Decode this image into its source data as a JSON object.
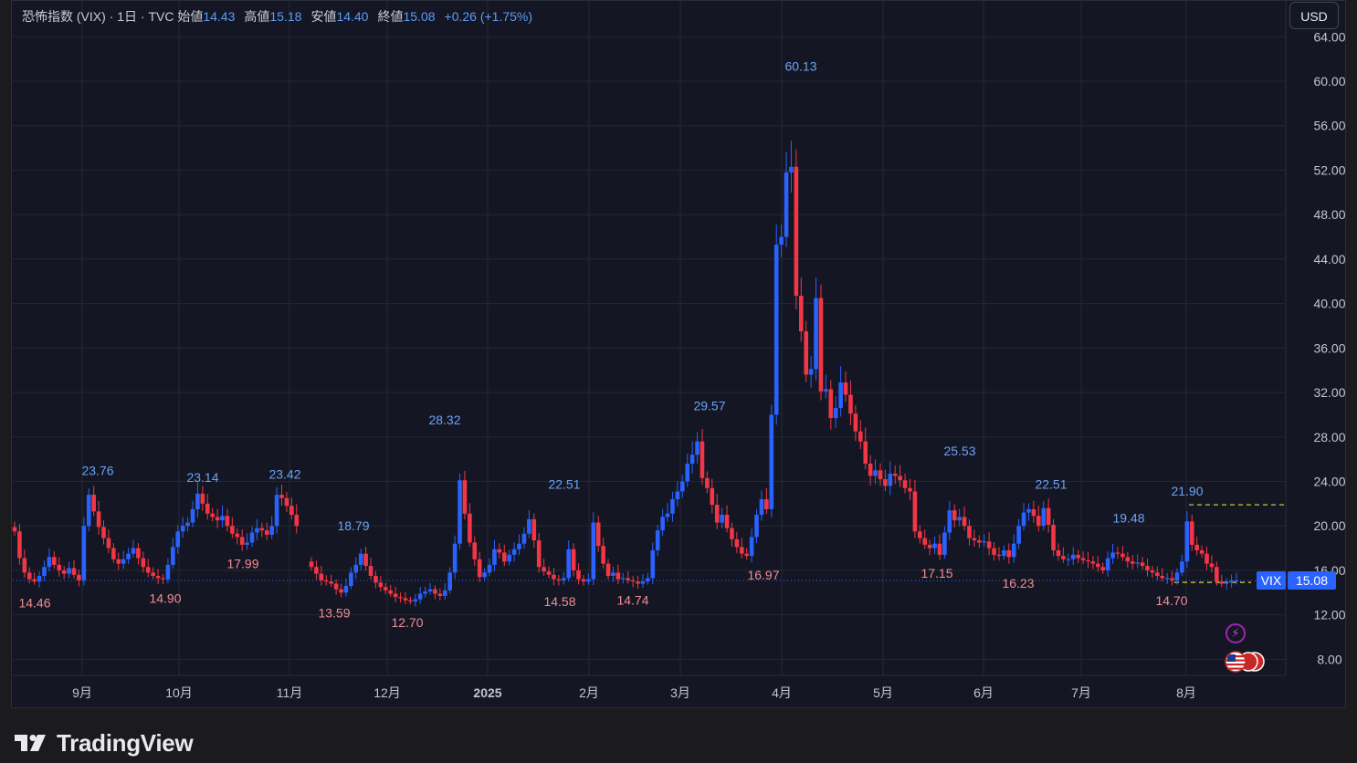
{
  "header": {
    "symbol_title": "恐怖指数 (VIX)",
    "separator_interval": "· 1日 · TVC",
    "open_label": "始値",
    "open_value": "14.43",
    "high_label": "高値",
    "high_value": "15.18",
    "low_label": "安値",
    "low_value": "14.40",
    "close_label": "終値",
    "close_value": "15.08",
    "change": "+0.26 (+1.75%)"
  },
  "currency_button": {
    "label": "USD"
  },
  "price_tag": {
    "symbol": "VIX",
    "value": "15.08"
  },
  "brand": {
    "name": "TradingView"
  },
  "icons": {
    "event": "lightning-icon",
    "flags": "us-flag-icon"
  },
  "colors": {
    "up": "#2962ff",
    "down": "#f23645",
    "background": "#141723",
    "grid": "#232734",
    "high_label": "#6aa2f7",
    "low_label": "#f28b94",
    "level_line": "#e5d33a"
  },
  "chart_data": {
    "type": "candlestick",
    "symbol": "VIX",
    "y_ticks": [
      "8.00",
      "12.00",
      "16.00",
      "20.00",
      "24.00",
      "28.00",
      "32.00",
      "36.00",
      "40.00",
      "44.00",
      "48.00",
      "52.00",
      "56.00",
      "60.00",
      "64.00"
    ],
    "ylim": [
      5.5,
      64.5
    ],
    "x_ticks": [
      "9月",
      "10月",
      "11月",
      "12月",
      "2025",
      "2月",
      "3月",
      "4月",
      "5月",
      "6月",
      "7月",
      "8月"
    ],
    "last_price": 15.08,
    "dashed_level": 21.9,
    "annotations": [
      {
        "text": "23.76",
        "kind": "high",
        "value": 23.76
      },
      {
        "text": "14.46",
        "kind": "low",
        "value": 14.46
      },
      {
        "text": "23.14",
        "kind": "high",
        "value": 23.14
      },
      {
        "text": "14.90",
        "kind": "low",
        "value": 14.9
      },
      {
        "text": "17.99",
        "kind": "low",
        "value": 17.99
      },
      {
        "text": "23.42",
        "kind": "high",
        "value": 23.42
      },
      {
        "text": "18.79",
        "kind": "high",
        "value": 18.79
      },
      {
        "text": "13.59",
        "kind": "low",
        "value": 13.59
      },
      {
        "text": "12.70",
        "kind": "low",
        "value": 12.7
      },
      {
        "text": "28.32",
        "kind": "high",
        "value": 28.32
      },
      {
        "text": "22.51",
        "kind": "high",
        "value": 22.51
      },
      {
        "text": "14.58",
        "kind": "low",
        "value": 14.58
      },
      {
        "text": "14.74",
        "kind": "low",
        "value": 14.74
      },
      {
        "text": "29.57",
        "kind": "high",
        "value": 29.57
      },
      {
        "text": "16.97",
        "kind": "low",
        "value": 16.97
      },
      {
        "text": "60.13",
        "kind": "high",
        "value": 60.13
      },
      {
        "text": "25.53",
        "kind": "high",
        "value": 25.53
      },
      {
        "text": "17.15",
        "kind": "low",
        "value": 17.15
      },
      {
        "text": "16.23",
        "kind": "low",
        "value": 16.23
      },
      {
        "text": "22.51",
        "kind": "high",
        "value": 22.51
      },
      {
        "text": "19.48",
        "kind": "high",
        "value": 19.48
      },
      {
        "text": "21.90",
        "kind": "high",
        "value": 21.9
      },
      {
        "text": "14.70",
        "kind": "low",
        "value": 14.7
      }
    ],
    "closes": [
      19.5,
      17.1,
      15.8,
      15.2,
      15.0,
      15.5,
      16.3,
      17.2,
      16.5,
      16.0,
      15.7,
      16.2,
      15.6,
      15.1,
      20.0,
      22.8,
      21.3,
      19.9,
      18.9,
      18.0,
      17.0,
      16.6,
      17.0,
      17.5,
      18.0,
      17.1,
      16.3,
      15.8,
      15.5,
      15.3,
      15.2,
      16.5,
      18.1,
      19.5,
      20.0,
      20.3,
      21.5,
      22.9,
      22.0,
      21.1,
      20.8,
      20.5,
      20.9,
      20.0,
      19.3,
      19.0,
      18.3,
      18.5,
      19.4,
      19.8,
      19.6,
      19.2,
      20.0,
      22.8,
      22.5,
      21.8,
      21.0,
      20.0,
      null,
      null,
      16.3,
      15.7,
      15.1,
      15.0,
      14.8,
      14.3,
      14.0,
      14.6,
      15.8,
      16.5,
      17.5,
      16.4,
      15.5,
      14.9,
      14.5,
      14.2,
      13.9,
      13.6,
      13.5,
      13.3,
      13.2,
      13.4,
      13.9,
      14.1,
      14.3,
      13.9,
      13.7,
      14.2,
      15.8,
      18.4,
      24.1,
      21.1,
      18.5,
      17.0,
      15.4,
      15.8,
      16.5,
      17.9,
      17.6,
      16.8,
      17.4,
      17.9,
      18.4,
      19.3,
      20.6,
      18.7,
      16.3,
      15.9,
      15.6,
      15.2,
      15.1,
      15.3,
      17.9,
      16.0,
      15.2,
      15.0,
      15.2,
      20.3,
      18.2,
      16.6,
      15.5,
      15.8,
      15.2,
      15.3,
      15.1,
      15.0,
      14.8,
      15.0,
      15.3,
      17.8,
      19.6,
      20.8,
      21.1,
      22.4,
      23.1,
      24.0,
      25.6,
      26.4,
      27.6,
      24.3,
      23.4,
      21.9,
      20.3,
      21.0,
      19.8,
      18.8,
      18.1,
      17.5,
      17.3,
      19.0,
      21.0,
      22.4,
      21.5,
      30.0,
      45.3,
      46.0,
      51.8,
      52.3,
      40.7,
      37.5,
      33.6,
      34.1,
      40.5,
      32.1,
      32.3,
      29.7,
      30.6,
      32.9,
      31.8,
      30.1,
      28.5,
      27.6,
      25.6,
      24.5,
      25.0,
      24.2,
      23.6,
      24.7,
      24.5,
      24.1,
      23.4,
      23.1,
      19.5,
      18.9,
      18.3,
      18.0,
      18.4,
      17.4,
      19.4,
      21.4,
      20.5,
      20.8,
      20.0,
      18.9,
      18.7,
      18.5,
      18.6,
      18.0,
      17.4,
      17.3,
      17.8,
      17.2,
      18.4,
      20.0,
      21.2,
      21.5,
      20.9,
      20.0,
      21.6,
      20.1,
      17.8,
      17.3,
      17.0,
      17.0,
      17.4,
      17.1,
      16.9,
      16.8,
      16.6,
      16.3,
      16.0,
      17.1,
      17.6,
      17.5,
      17.2,
      16.8,
      16.6,
      16.7,
      16.4,
      16.0,
      15.8,
      15.5,
      15.3,
      15.3,
      15.1,
      15.8,
      16.8,
      20.4,
      18.3,
      17.8,
      17.5,
      16.6,
      16.3,
      15.0,
      14.8,
      14.9,
      15.1,
      15.1
    ]
  }
}
